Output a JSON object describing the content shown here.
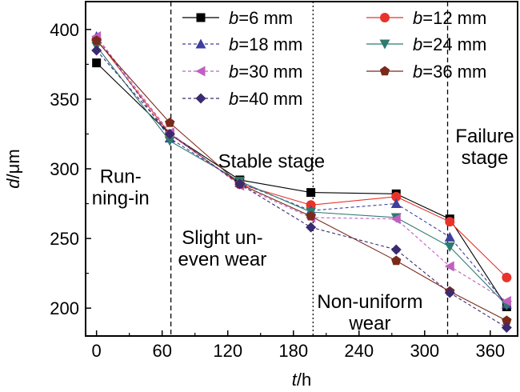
{
  "chart_data": {
    "type": "line",
    "xlabel": {
      "var": "t",
      "unit": "/h"
    },
    "ylabel": {
      "var": "d",
      "unit": "/μm"
    },
    "xlim": [
      -10,
      385
    ],
    "ylim": [
      180,
      420
    ],
    "xticks": [
      0,
      60,
      120,
      180,
      240,
      300,
      360
    ],
    "yticks": [
      200,
      250,
      300,
      350,
      400
    ],
    "x": [
      0,
      67,
      131,
      196,
      274,
      323,
      375
    ],
    "series": [
      {
        "name": "b=6 mm",
        "prefix": "b",
        "suffix": "=6 mm",
        "color": "#000000",
        "marker": "square",
        "dash": "solid",
        "values": [
          376,
          325,
          292,
          283,
          282,
          264,
          201
        ]
      },
      {
        "name": "b=12 mm",
        "prefix": "b",
        "suffix": "=12 mm",
        "color": "#e8332a",
        "marker": "circle",
        "dash": "solid",
        "values": [
          393,
          325,
          289,
          274,
          280,
          262,
          222
        ]
      },
      {
        "name": "b=18 mm",
        "prefix": "b",
        "suffix": "=18 mm",
        "color": "#3f3fa0",
        "marker": "triangle",
        "dash": "dashed",
        "values": [
          395,
          322,
          290,
          270,
          275,
          251,
          203
        ]
      },
      {
        "name": "b=24 mm",
        "prefix": "b",
        "suffix": "=24 mm",
        "color": "#2f7a6f",
        "marker": "tridown",
        "dash": "solid",
        "values": [
          388,
          320,
          291,
          269,
          265,
          244,
          202
        ]
      },
      {
        "name": "b=30 mm",
        "prefix": "b",
        "suffix": "=30 mm",
        "color": "#c060c0",
        "marker": "tri-left",
        "dash": "dashed",
        "values": [
          395,
          326,
          288,
          265,
          264,
          230,
          205
        ]
      },
      {
        "name": "b=36 mm",
        "prefix": "b",
        "suffix": "=36 mm",
        "color": "#7a2a1a",
        "marker": "pentagon",
        "dash": "solid",
        "values": [
          392,
          333,
          289,
          266,
          234,
          212,
          191
        ]
      },
      {
        "name": "b=40 mm",
        "prefix": "b",
        "suffix": "=40 mm",
        "color": "#3a2a70",
        "marker": "diamond",
        "dash": "dashed",
        "values": [
          385,
          325,
          289,
          258,
          242,
          211,
          186
        ]
      }
    ],
    "vlines": [
      {
        "x": 68,
        "style": "dashed"
      },
      {
        "x": 198,
        "style": "dotted"
      },
      {
        "x": 321,
        "style": "dashed"
      }
    ],
    "annotations": [
      {
        "lines": [
          "Run-",
          "ning-in"
        ],
        "x": 22,
        "y": 290,
        "anchor": "middle"
      },
      {
        "lines": [
          "Stable stage"
        ],
        "x": 160,
        "y": 301,
        "anchor": "middle"
      },
      {
        "lines": [
          "Slight un-",
          "even wear"
        ],
        "x": 115,
        "y": 246,
        "anchor": "middle"
      },
      {
        "lines": [
          "Non-uniform",
          "wear"
        ],
        "x": 250,
        "y": 200,
        "anchor": "middle"
      },
      {
        "lines": [
          "Failure",
          "stage"
        ],
        "x": 355,
        "y": 319,
        "anchor": "middle"
      }
    ],
    "legend": {
      "placement": "top-right",
      "columns": 2
    },
    "grid": false
  }
}
